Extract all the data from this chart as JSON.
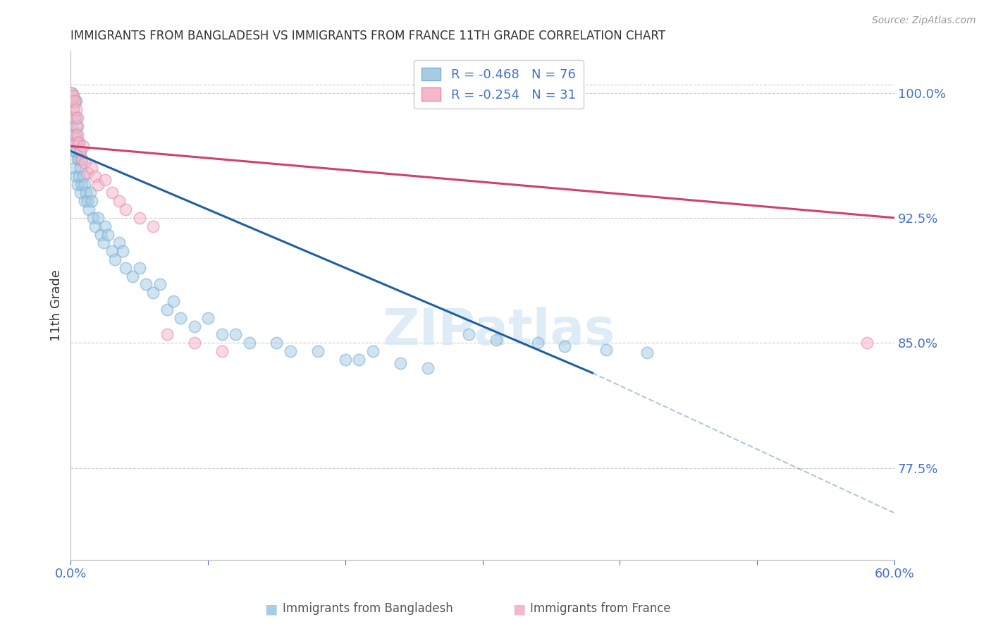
{
  "title": "IMMIGRANTS FROM BANGLADESH VS IMMIGRANTS FROM FRANCE 11TH GRADE CORRELATION CHART",
  "source": "Source: ZipAtlas.com",
  "ylabel": "11th Grade",
  "legend_label_bd": "Immigrants from Bangladesh",
  "legend_label_fr": "Immigrants from France",
  "xlim": [
    0.0,
    0.6
  ],
  "ylim": [
    0.72,
    1.025
  ],
  "xtick_positions": [
    0.0,
    0.1,
    0.2,
    0.3,
    0.4,
    0.5,
    0.6
  ],
  "xtick_labels": [
    "0.0%",
    "",
    "",
    "",
    "",
    "",
    "60.0%"
  ],
  "ytick_positions": [
    0.775,
    0.85,
    0.925,
    1.0
  ],
  "ytick_labels": [
    "77.5%",
    "85.0%",
    "92.5%",
    "100.0%"
  ],
  "r_bd": "-0.468",
  "n_bd": "76",
  "r_fr": "-0.254",
  "n_fr": "31",
  "color_bd": "#a8cce4",
  "color_bd_edge": "#7aafd4",
  "color_fr": "#f5b8cb",
  "color_fr_edge": "#e88aa8",
  "color_trendline_bd": "#2060a0",
  "color_trendline_fr": "#d04070",
  "color_axis": "#4472c4",
  "color_grid": "#cccccc",
  "bg": "#ffffff",
  "watermark_text": "ZIPatlas",
  "bd_x": [
    0.001,
    0.001,
    0.001,
    0.002,
    0.002,
    0.002,
    0.002,
    0.003,
    0.003,
    0.003,
    0.003,
    0.003,
    0.004,
    0.004,
    0.004,
    0.004,
    0.004,
    0.005,
    0.005,
    0.005,
    0.005,
    0.006,
    0.006,
    0.006,
    0.007,
    0.007,
    0.007,
    0.008,
    0.008,
    0.009,
    0.01,
    0.01,
    0.011,
    0.012,
    0.013,
    0.014,
    0.015,
    0.016,
    0.018,
    0.02,
    0.022,
    0.024,
    0.025,
    0.027,
    0.03,
    0.032,
    0.035,
    0.038,
    0.04,
    0.045,
    0.05,
    0.055,
    0.06,
    0.065,
    0.07,
    0.075,
    0.08,
    0.09,
    0.1,
    0.11,
    0.12,
    0.13,
    0.15,
    0.16,
    0.18,
    0.2,
    0.21,
    0.22,
    0.24,
    0.26,
    0.29,
    0.31,
    0.34,
    0.36,
    0.39,
    0.42
  ],
  "bd_y": [
    1.0,
    0.995,
    0.98,
    0.998,
    0.99,
    0.975,
    0.965,
    0.995,
    0.985,
    0.975,
    0.965,
    0.955,
    0.995,
    0.985,
    0.975,
    0.965,
    0.95,
    0.98,
    0.97,
    0.96,
    0.945,
    0.97,
    0.96,
    0.95,
    0.965,
    0.955,
    0.94,
    0.96,
    0.945,
    0.95,
    0.945,
    0.935,
    0.94,
    0.935,
    0.93,
    0.94,
    0.935,
    0.925,
    0.92,
    0.925,
    0.915,
    0.91,
    0.92,
    0.915,
    0.905,
    0.9,
    0.91,
    0.905,
    0.895,
    0.89,
    0.895,
    0.885,
    0.88,
    0.885,
    0.87,
    0.875,
    0.865,
    0.86,
    0.865,
    0.855,
    0.855,
    0.85,
    0.85,
    0.845,
    0.845,
    0.84,
    0.84,
    0.845,
    0.838,
    0.835,
    0.855,
    0.852,
    0.85,
    0.848,
    0.846,
    0.844
  ],
  "fr_x": [
    0.001,
    0.001,
    0.002,
    0.002,
    0.003,
    0.003,
    0.003,
    0.004,
    0.004,
    0.004,
    0.005,
    0.005,
    0.006,
    0.007,
    0.008,
    0.009,
    0.01,
    0.012,
    0.015,
    0.018,
    0.02,
    0.025,
    0.03,
    0.035,
    0.04,
    0.05,
    0.06,
    0.07,
    0.09,
    0.11,
    0.58
  ],
  "fr_y": [
    1.0,
    0.995,
    0.998,
    0.99,
    0.995,
    0.985,
    0.975,
    0.99,
    0.98,
    0.97,
    0.985,
    0.975,
    0.97,
    0.965,
    0.96,
    0.968,
    0.958,
    0.952,
    0.955,
    0.95,
    0.945,
    0.948,
    0.94,
    0.935,
    0.93,
    0.925,
    0.92,
    0.855,
    0.85,
    0.845,
    0.85
  ],
  "trendline_bd_x0": 0.0,
  "trendline_bd_y0": 0.965,
  "trendline_bd_x1": 0.38,
  "trendline_bd_y1": 0.832,
  "trendline_bd_dash_x1": 0.6,
  "trendline_bd_dash_y1": 0.748,
  "trendline_fr_x0": 0.0,
  "trendline_fr_y0": 0.968,
  "trendline_fr_x1": 0.6,
  "trendline_fr_y1": 0.925
}
